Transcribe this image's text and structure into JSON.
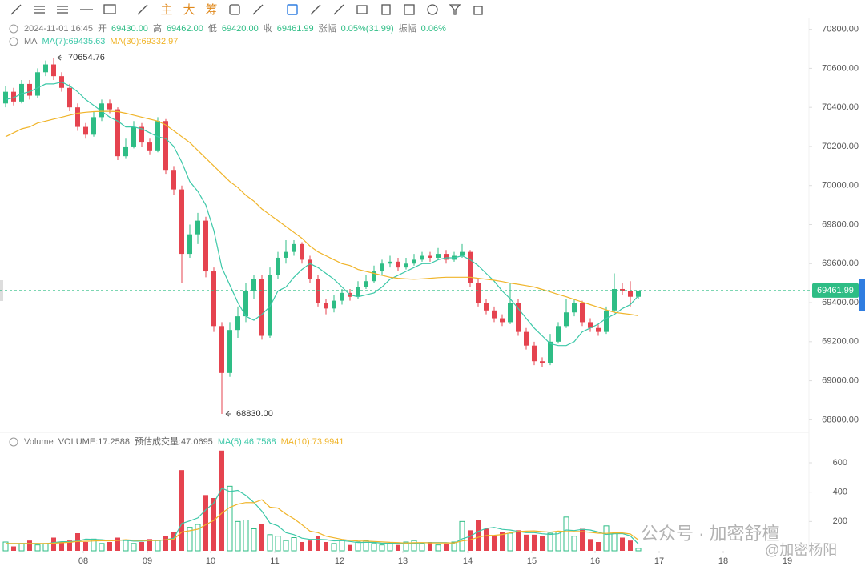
{
  "toolbar": {
    "labels": [
      "主",
      "大",
      "筹"
    ]
  },
  "chart_data": {
    "type": "candlestick",
    "info": [
      {
        "text": "2024-11-01 16:45"
      },
      {
        "label": "开",
        "text": "69430.00"
      },
      {
        "label": "高",
        "text": "69462.00"
      },
      {
        "label": "低",
        "text": "69420.00"
      },
      {
        "label": "收",
        "text": "69461.99"
      },
      {
        "label": "涨幅",
        "text": "0.05%(31.99)"
      },
      {
        "label": "振幅",
        "text": "0.06%"
      }
    ],
    "ma_title": "MA",
    "open": [
      70420,
      70480,
      70430,
      70520,
      70460,
      70580,
      70620,
      70560,
      70500,
      70400,
      70300,
      70260,
      70350,
      70420,
      70390,
      70150,
      70200,
      70300,
      70220,
      70180,
      70330,
      70080,
      69980,
      69650,
      69750,
      69820,
      69560,
      69280,
      69040,
      69260,
      69330,
      69460,
      69520,
      69230,
      69540,
      69630,
      69660,
      69700,
      69620,
      69520,
      69400,
      69370,
      69410,
      69450,
      69430,
      69480,
      69510,
      69560,
      69600,
      69610,
      69580,
      69600,
      69620,
      69640,
      69630,
      69650,
      69620,
      69640,
      69660,
      69500,
      69400,
      69360,
      69320,
      69300,
      69400,
      69250,
      69180,
      69100,
      69090,
      69200,
      69280,
      69350,
      69400,
      69300,
      69270,
      69250,
      69360,
      69470,
      69460,
      69430
    ],
    "high": [
      70510,
      70500,
      70540,
      70540,
      70600,
      70640,
      70654.76,
      70580,
      70520,
      70420,
      70320,
      70380,
      70440,
      70440,
      70400,
      70240,
      70330,
      70320,
      70240,
      70350,
      70340,
      70100,
      70000,
      69800,
      69860,
      69840,
      69580,
      69300,
      69300,
      69380,
      69500,
      69540,
      69540,
      69580,
      69660,
      69720,
      69720,
      69710,
      69640,
      69540,
      69420,
      69440,
      69470,
      69470,
      69510,
      69540,
      69590,
      69620,
      69640,
      69630,
      69630,
      69650,
      69660,
      69660,
      69680,
      69670,
      69660,
      69700,
      69670,
      69520,
      69420,
      69380,
      69340,
      69500,
      69420,
      69270,
      69200,
      69120,
      69240,
      69300,
      69420,
      69420,
      69410,
      69320,
      69290,
      69380,
      69550,
      69500,
      69510,
      69462
    ],
    "low": [
      70400,
      70410,
      70420,
      70440,
      70450,
      70560,
      70540,
      70480,
      70380,
      70280,
      70240,
      70250,
      70330,
      70370,
      70130,
      70140,
      70190,
      70200,
      70160,
      70170,
      70060,
      69950,
      69500,
      69630,
      69700,
      69530,
      69250,
      68830,
      69020,
      69220,
      69300,
      69420,
      69210,
      69220,
      69520,
      69600,
      69640,
      69600,
      69500,
      69380,
      69340,
      69350,
      69390,
      69410,
      69420,
      69470,
      69500,
      69540,
      69580,
      69560,
      69570,
      69590,
      69610,
      69610,
      69620,
      69600,
      69610,
      69630,
      69480,
      69380,
      69340,
      69300,
      69280,
      69290,
      69230,
      69160,
      69080,
      69070,
      69080,
      69190,
      69270,
      69330,
      69280,
      69250,
      69230,
      69240,
      69350,
      69440,
      69380,
      69420
    ],
    "close": [
      70480,
      70430,
      70520,
      70460,
      70580,
      70620,
      70560,
      70500,
      70400,
      70300,
      70260,
      70350,
      70420,
      70390,
      70150,
      70200,
      70300,
      70220,
      70180,
      70330,
      70080,
      69980,
      69650,
      69750,
      69820,
      69560,
      69280,
      69040,
      69260,
      69330,
      69460,
      69520,
      69230,
      69540,
      69630,
      69660,
      69700,
      69620,
      69520,
      69400,
      69370,
      69410,
      69450,
      69430,
      69480,
      69510,
      69560,
      69600,
      69610,
      69580,
      69600,
      69620,
      69640,
      69630,
      69650,
      69620,
      69640,
      69660,
      69500,
      69400,
      69360,
      69320,
      69300,
      69400,
      69250,
      69180,
      69100,
      69090,
      69200,
      69280,
      69350,
      69400,
      69300,
      69270,
      69250,
      69360,
      69470,
      69460,
      69430,
      69461.99
    ],
    "series": [
      {
        "name": "MA(7):69435.63",
        "color": "#3cc8a8",
        "values": [
          70440,
          70450,
          70470,
          70480,
          70500,
          70520,
          70520,
          70530,
          70510,
          70480,
          70440,
          70410,
          70380,
          70350,
          70330,
          70300,
          70300,
          70290,
          70270,
          70250,
          70240,
          70200,
          70120,
          70020,
          69970,
          69900,
          69770,
          69580,
          69490,
          69400,
          69330,
          69310,
          69340,
          69380,
          69460,
          69480,
          69530,
          69570,
          69600,
          69580,
          69550,
          69520,
          69480,
          69440,
          69430,
          69440,
          69450,
          69480,
          69520,
          69540,
          69560,
          69580,
          69600,
          69600,
          69620,
          69630,
          69630,
          69640,
          69620,
          69590,
          69550,
          69510,
          69460,
          69420,
          69370,
          69320,
          69270,
          69230,
          69190,
          69180,
          69180,
          69200,
          69250,
          69270,
          69290,
          69320,
          69340,
          69370,
          69390,
          69435.63
        ]
      },
      {
        "name": "MA(30):69332.97",
        "color": "#f0b429",
        "values": [
          70250,
          70270,
          70290,
          70300,
          70320,
          70330,
          70340,
          70350,
          70360,
          70370,
          70375,
          70378,
          70380,
          70380,
          70378,
          70370,
          70360,
          70350,
          70340,
          70330,
          70310,
          70280,
          70250,
          70220,
          70180,
          70140,
          70100,
          70060,
          70020,
          69990,
          69950,
          69920,
          69880,
          69850,
          69820,
          69790,
          69760,
          69730,
          69690,
          69660,
          69640,
          69620,
          69600,
          69590,
          69570,
          69560,
          69550,
          69540,
          69530,
          69525,
          69522,
          69520,
          69522,
          69525,
          69528,
          69530,
          69530,
          69530,
          69530,
          69525,
          69520,
          69515,
          69508,
          69500,
          69494,
          69487,
          69480,
          69468,
          69455,
          69442,
          69430,
          69416,
          69403,
          69390,
          69377,
          69363,
          69350,
          69345,
          69340,
          69332.97
        ]
      }
    ],
    "ylim": [
      68740,
      70860
    ],
    "yticks": [
      {
        "value": 68800,
        "label": "68800.00"
      },
      {
        "value": 69000,
        "label": "69000.00"
      },
      {
        "value": 69200,
        "label": "69200.00"
      },
      {
        "value": 69400,
        "label": "69400.00"
      },
      {
        "value": 69600,
        "label": "69600.00"
      },
      {
        "value": 69800,
        "label": "69800.00"
      },
      {
        "value": 70000,
        "label": "70000.00"
      },
      {
        "value": 70200,
        "label": "70200.00"
      },
      {
        "value": 70400,
        "label": "70400.00"
      },
      {
        "value": 70600,
        "label": "70600.00"
      },
      {
        "value": 70800,
        "label": "70800.00"
      }
    ],
    "annotations": [
      {
        "value": 70654.76,
        "text": "70654.76"
      },
      {
        "value": 68830,
        "text": "68830.00"
      }
    ],
    "xlim": [
      -0.7,
      100.3
    ],
    "xticks": [
      {
        "value": 9.7,
        "label": "08"
      },
      {
        "value": 17.7,
        "label": "09"
      },
      {
        "value": 25.6,
        "label": "10"
      },
      {
        "value": 33.6,
        "label": "11"
      },
      {
        "value": 41.7,
        "label": "12"
      },
      {
        "value": 49.6,
        "label": "13"
      },
      {
        "value": 57.7,
        "label": "14"
      },
      {
        "value": 65.7,
        "label": "15"
      },
      {
        "value": 73.6,
        "label": "16"
      },
      {
        "value": 81.6,
        "label": "17"
      },
      {
        "value": 89.6,
        "label": "18"
      },
      {
        "value": 97.6,
        "label": "19"
      }
    ],
    "up_color": "#2ebd85",
    "down_color": "#e5434f",
    "volume": {
      "title": "Volume",
      "legend": [
        {
          "text": "VOLUME:17.2588",
          "color": "#666"
        },
        {
          "text": "预估成交量:47.0695",
          "color": "#666"
        },
        {
          "text": "MA(5):46.7588",
          "color": "#3cc8a8"
        },
        {
          "text": "MA(10):73.9941",
          "color": "#f0b429"
        }
      ],
      "values": [
        60,
        30,
        50,
        70,
        40,
        50,
        90,
        60,
        70,
        120,
        60,
        80,
        50,
        60,
        90,
        70,
        50,
        60,
        80,
        70,
        100,
        130,
        550,
        160,
        180,
        380,
        360,
        683,
        440,
        200,
        210,
        150,
        180,
        110,
        100,
        70,
        90,
        60,
        70,
        100,
        60,
        50,
        70,
        40,
        60,
        70,
        50,
        40,
        50,
        40,
        60,
        70,
        50,
        60,
        40,
        50,
        60,
        200,
        140,
        210,
        150,
        100,
        130,
        120,
        140,
        110,
        110,
        100,
        120,
        130,
        230,
        100,
        150,
        80,
        60,
        170,
        120,
        90,
        70,
        17.2588
      ],
      "series": [
        {
          "color": "#3cc8a8",
          "values": [
            50,
            50,
            50,
            50,
            50,
            48,
            56,
            62,
            62,
            66,
            80,
            78,
            76,
            70,
            72,
            72,
            66,
            66,
            70,
            70,
            76,
            86,
            186,
            204,
            224,
            280,
            326,
            426,
            404,
            412,
            378,
            330,
            270,
            190,
            170,
            124,
            110,
            86,
            78,
            78,
            76,
            68,
            70,
            64,
            56,
            58,
            58,
            52,
            52,
            52,
            48,
            52,
            54,
            56,
            56,
            56,
            52,
            82,
            98,
            132,
            152,
            160,
            146,
            142,
            132,
            124,
            124,
            116,
            112,
            116,
            142,
            138,
            146,
            142,
            128,
            112,
            116,
            118,
            102,
            46.7588
          ]
        },
        {
          "color": "#f0b429",
          "values": [
            50,
            50,
            50,
            50,
            50,
            50,
            52,
            55,
            58,
            64,
            65,
            67,
            69,
            68,
            71,
            76,
            72,
            71,
            70,
            71,
            76,
            79,
            128,
            137,
            147,
            178,
            207,
            257,
            296,
            318,
            329,
            328,
            348,
            297,
            291,
            251,
            218,
            178,
            134,
            124,
            100,
            89,
            78,
            71,
            67,
            66,
            64,
            61,
            58,
            56,
            53,
            55,
            56,
            54,
            54,
            54,
            54,
            67,
            75,
            92,
            104,
            106,
            111,
            123,
            131,
            134,
            136,
            131,
            127,
            134,
            131,
            132,
            131,
            126,
            120,
            119,
            123,
            122,
            115,
            73.9941
          ]
        }
      ],
      "ylim": [
        0,
        780
      ],
      "yticks": [
        200,
        400,
        600
      ]
    }
  },
  "watermark": {
    "line1": "公众号 · 加密舒檀",
    "line2": "@加密杨阳"
  }
}
